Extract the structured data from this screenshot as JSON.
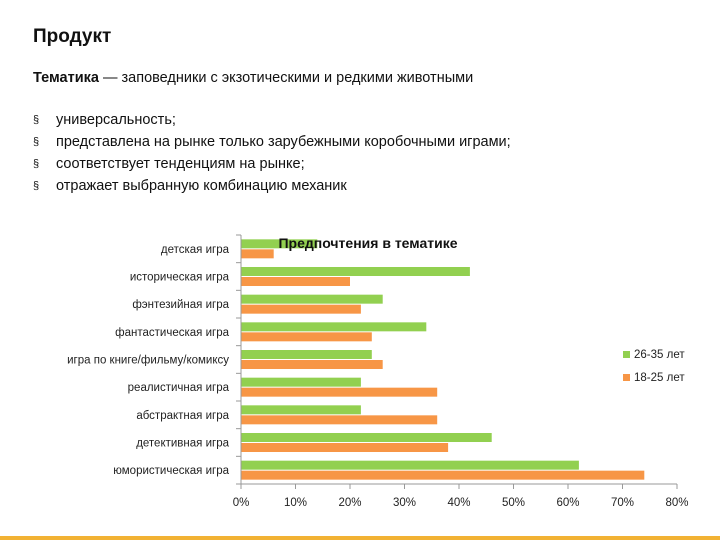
{
  "slide": {
    "title": "Продукт",
    "theme_label": "Тематика",
    "theme_text": " — заповедники с экзотическими и редкими животными",
    "bullet_marker": "§",
    "bullets": [
      "универсальность;",
      "представлена на рынке только зарубежными коробочными играми;",
      "соответствует тенденциям на рынке;",
      "отражает выбранную комбинацию механик"
    ]
  },
  "chart_data": {
    "type": "bar",
    "orientation": "horizontal",
    "title": "Предпочтения в тематике",
    "categories": [
      "детская игра",
      "историческая игра",
      "фэнтезийная игра",
      "фантастическая игра",
      "игра по книге/фильму/комиксу",
      "реалистичная игра",
      "абстрактная игра",
      "детективная игра",
      "юмористическая игра"
    ],
    "series": [
      {
        "name": "26-35 лет",
        "color": "#92d050",
        "values": [
          14,
          42,
          26,
          34,
          24,
          22,
          22,
          46,
          62
        ]
      },
      {
        "name": "18-25 лет",
        "color": "#f79646",
        "values": [
          6,
          20,
          22,
          24,
          26,
          36,
          36,
          38,
          74
        ]
      }
    ],
    "xlim": [
      0,
      80
    ],
    "x_ticks": [
      "0%",
      "10%",
      "20%",
      "30%",
      "40%",
      "50%",
      "60%",
      "70%",
      "80%"
    ],
    "grid": false,
    "legend_position": "right"
  }
}
